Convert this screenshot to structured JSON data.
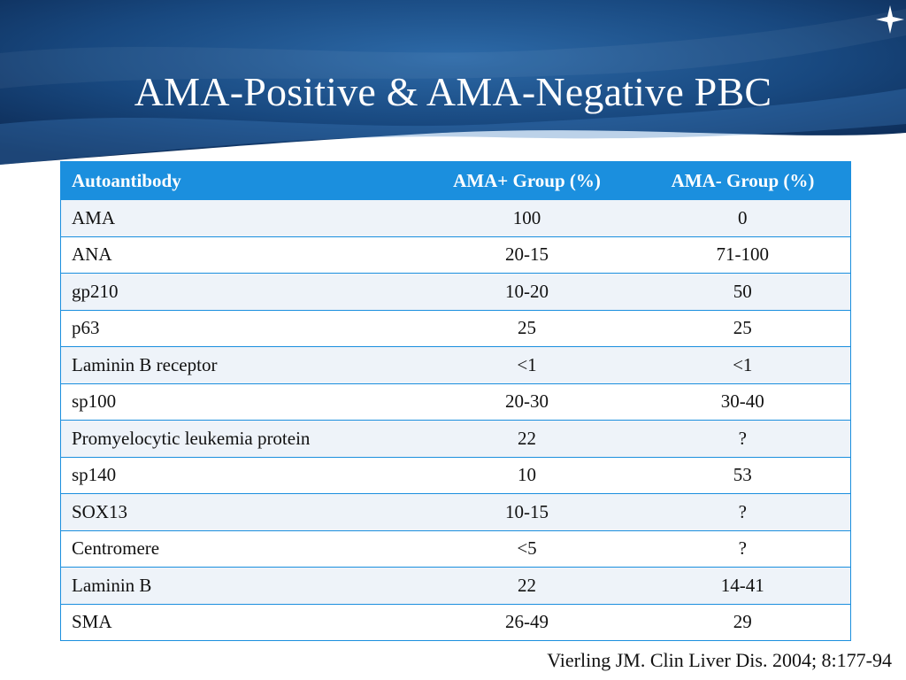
{
  "slide": {
    "title": "AMA-Positive & AMA-Negative PBC",
    "citation": "Vierling JM. Clin Liver Dis. 2004; 8:177-94"
  },
  "table": {
    "headers": [
      "Autoantibody",
      "AMA+ Group (%)",
      "AMA- Group (%)"
    ],
    "rows": [
      [
        "AMA",
        "100",
        "0"
      ],
      [
        "ANA",
        "20-15",
        "71-100"
      ],
      [
        "gp210",
        "10-20",
        "50"
      ],
      [
        "p63",
        "25",
        "25"
      ],
      [
        "Laminin B receptor",
        "<1",
        "<1"
      ],
      [
        "sp100",
        "20-30",
        "30-40"
      ],
      [
        "Promyelocytic leukemia protein",
        "22",
        "?"
      ],
      [
        "sp140",
        "10",
        "53"
      ],
      [
        "SOX13",
        "10-15",
        "?"
      ],
      [
        "Centromere",
        "<5",
        "?"
      ],
      [
        "Laminin B",
        "22",
        "14-41"
      ],
      [
        "SMA",
        "26-49",
        "29"
      ]
    ]
  },
  "colors": {
    "banner_dark": "#0c2a55",
    "banner_mid": "#1b4f8c",
    "header_fill": "#1b8fde",
    "row_alt": "#eef3f9"
  }
}
